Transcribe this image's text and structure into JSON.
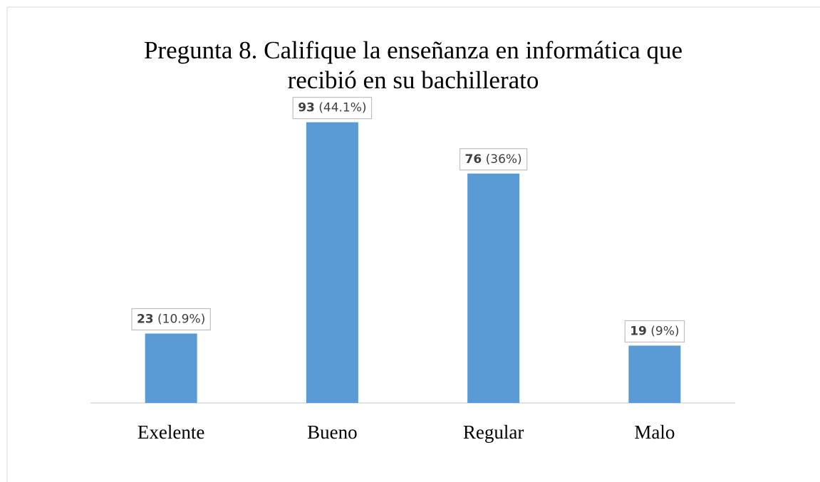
{
  "chart_data": {
    "type": "bar",
    "title": "Pregunta 8. Califique la enseñanza en informática que recibió en su bachillerato",
    "categories": [
      "Exelente",
      "Bueno",
      "Regular",
      "Malo"
    ],
    "values": [
      23,
      93,
      76,
      19
    ],
    "percent_labels": [
      "(10.9%)",
      "(44.1%)",
      "(36%)",
      "(9%)"
    ],
    "color": "#5b9bd5",
    "ylim": [
      0,
      100
    ]
  }
}
